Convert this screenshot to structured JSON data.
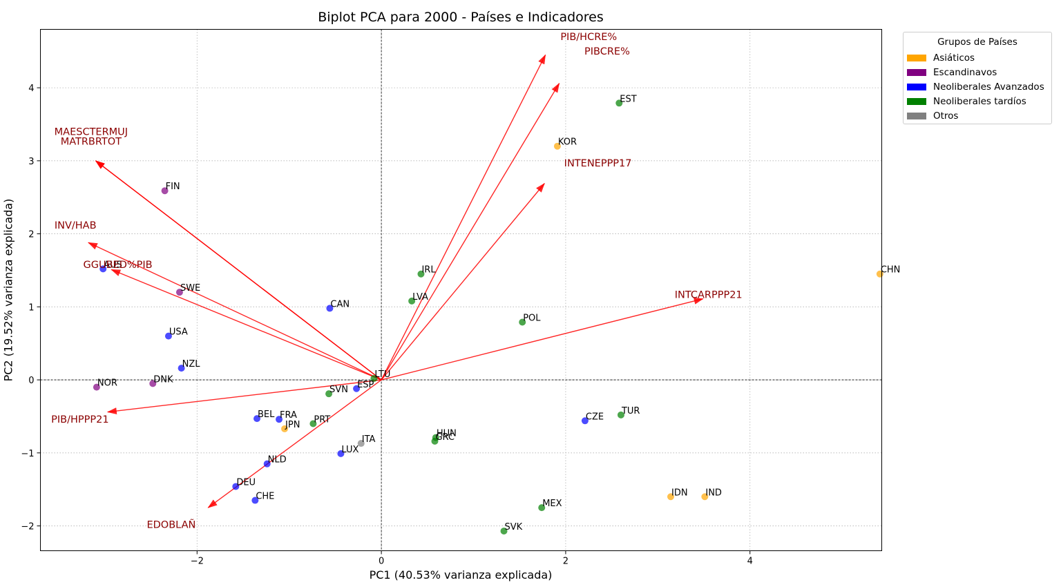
{
  "chart_data": {
    "type": "scatter",
    "title": "Biplot PCA para 2000 - Países e Indicadores",
    "xlabel": "PC1 (40.53% varianza explicada)",
    "ylabel": "PC2 (19.52% varianza explicada)",
    "xlim": [
      -3.7,
      5.43
    ],
    "ylim": [
      -2.34,
      4.8
    ],
    "xticks": [
      -2,
      0,
      2,
      4
    ],
    "yticks": [
      -2,
      -1,
      0,
      1,
      2,
      3,
      4
    ],
    "grid": true,
    "legend": {
      "title": "Grupos de Países",
      "placement": "outside-top-right",
      "entries": [
        {
          "label": "Asiáticos",
          "color": "#ffa500"
        },
        {
          "label": "Escandinavos",
          "color": "#800080"
        },
        {
          "label": "Neoliberales Avanzados",
          "color": "#0000ff"
        },
        {
          "label": "Neoliberales tardíos",
          "color": "#008000"
        },
        {
          "label": "Otros",
          "color": "#808080"
        }
      ]
    },
    "points": [
      {
        "label": "AUS",
        "x": -3.02,
        "y": 1.52,
        "group": 2
      },
      {
        "label": "FIN",
        "x": -2.35,
        "y": 2.59,
        "group": 1
      },
      {
        "label": "SWE",
        "x": -2.19,
        "y": 1.2,
        "group": 1
      },
      {
        "label": "USA",
        "x": -2.31,
        "y": 0.6,
        "group": 2
      },
      {
        "label": "NZL",
        "x": -2.17,
        "y": 0.16,
        "group": 2
      },
      {
        "label": "NOR",
        "x": -3.09,
        "y": -0.1,
        "group": 1
      },
      {
        "label": "DNK",
        "x": -2.48,
        "y": -0.05,
        "group": 1
      },
      {
        "label": "CAN",
        "x": -0.56,
        "y": 0.98,
        "group": 2
      },
      {
        "label": "IRL",
        "x": 0.43,
        "y": 1.45,
        "group": 3
      },
      {
        "label": "LVA",
        "x": 0.33,
        "y": 1.08,
        "group": 3
      },
      {
        "label": "POL",
        "x": 1.53,
        "y": 0.79,
        "group": 3
      },
      {
        "label": "KOR",
        "x": 1.91,
        "y": 3.2,
        "group": 0
      },
      {
        "label": "EST",
        "x": 2.58,
        "y": 3.79,
        "group": 3
      },
      {
        "label": "CHN",
        "x": 5.41,
        "y": 1.45,
        "group": 0
      },
      {
        "label": "LTU",
        "x": -0.08,
        "y": 0.02,
        "group": 3
      },
      {
        "label": "ESP",
        "x": -0.27,
        "y": -0.12,
        "group": 2
      },
      {
        "label": "SVN",
        "x": -0.57,
        "y": -0.19,
        "group": 3
      },
      {
        "label": "BEL",
        "x": -1.35,
        "y": -0.53,
        "group": 2
      },
      {
        "label": "FRA",
        "x": -1.11,
        "y": -0.54,
        "group": 2
      },
      {
        "label": "JPN",
        "x": -1.05,
        "y": -0.67,
        "group": 0
      },
      {
        "label": "PRT",
        "x": -0.74,
        "y": -0.6,
        "group": 3
      },
      {
        "label": "ITA",
        "x": -0.22,
        "y": -0.87,
        "group": 4
      },
      {
        "label": "LUX",
        "x": -0.44,
        "y": -1.01,
        "group": 2
      },
      {
        "label": "HUN",
        "x": 0.59,
        "y": -0.79,
        "group": 3
      },
      {
        "label": "GRC",
        "x": 0.58,
        "y": -0.84,
        "group": 3
      },
      {
        "label": "NLD",
        "x": -1.24,
        "y": -1.15,
        "group": 2
      },
      {
        "label": "DEU",
        "x": -1.58,
        "y": -1.46,
        "group": 2
      },
      {
        "label": "CHE",
        "x": -1.37,
        "y": -1.65,
        "group": 2
      },
      {
        "label": "CZE",
        "x": 2.21,
        "y": -0.56,
        "group": 2
      },
      {
        "label": "TUR",
        "x": 2.6,
        "y": -0.48,
        "group": 3
      },
      {
        "label": "MEX",
        "x": 1.74,
        "y": -1.75,
        "group": 3
      },
      {
        "label": "SVK",
        "x": 1.33,
        "y": -2.07,
        "group": 3
      },
      {
        "label": "IDN",
        "x": 3.14,
        "y": -1.6,
        "group": 0
      },
      {
        "label": "IND",
        "x": 3.51,
        "y": -1.6,
        "group": 0
      }
    ],
    "loadings": [
      {
        "label": "MAESCTERMUJ",
        "x": -3.1,
        "y": 3.0,
        "lx": -3.15,
        "ly": 3.4
      },
      {
        "label": "MATRBRTOT",
        "x": -3.1,
        "y": 3.0,
        "lx": -3.15,
        "ly": 3.27
      },
      {
        "label": "INV/HAB",
        "x": -3.18,
        "y": 1.88,
        "lx": -3.32,
        "ly": 2.12
      },
      {
        "label": "GGUBED%PIB",
        "x": -2.93,
        "y": 1.51,
        "lx": -2.86,
        "ly": 1.58
      },
      {
        "label": "PIB/HPPP21",
        "x": -2.97,
        "y": -0.44,
        "lx": -3.27,
        "ly": -0.54
      },
      {
        "label": "EDOBLAÑ",
        "x": -1.88,
        "y": -1.75,
        "lx": -2.28,
        "ly": -1.98
      },
      {
        "label": "PIB/HCRE%",
        "x": 1.78,
        "y": 4.45,
        "lx": 2.25,
        "ly": 4.7
      },
      {
        "label": "PIBCRE%",
        "x": 1.93,
        "y": 4.06,
        "lx": 2.45,
        "ly": 4.5
      },
      {
        "label": "INTENEPPP17",
        "x": 1.77,
        "y": 2.69,
        "lx": 2.35,
        "ly": 2.97
      },
      {
        "label": "INTCARPPP21",
        "x": 3.49,
        "y": 1.11,
        "lx": 3.55,
        "ly": 1.17
      }
    ]
  }
}
